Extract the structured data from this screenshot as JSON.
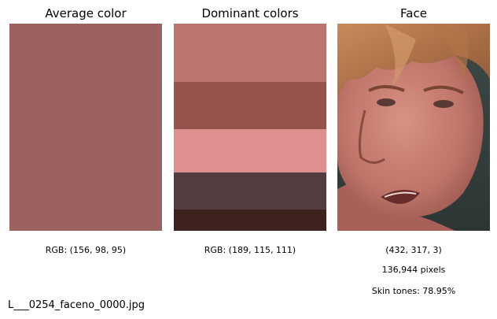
{
  "panels": {
    "average": {
      "title": "Average color",
      "color": "#9c625f",
      "caption": "RGB: (156, 98, 95)"
    },
    "dominant": {
      "title": "Dominant colors",
      "caption": "RGB: (189, 115, 111)",
      "bands": [
        {
          "color": "#bd736f",
          "fraction": 0.28
        },
        {
          "color": "#94544d",
          "fraction": 0.23
        },
        {
          "color": "#df8f8f",
          "fraction": 0.21
        },
        {
          "color": "#543d3e",
          "fraction": 0.18
        },
        {
          "color": "#3d221e",
          "fraction": 0.1
        }
      ]
    },
    "face": {
      "title": "Face",
      "shape_caption": "(432, 317, 3)",
      "pixels_caption": "136,944 pixels",
      "skin_caption": "Skin tones: 78.95%"
    }
  },
  "filename": "L___0254_faceno_0000.jpg"
}
